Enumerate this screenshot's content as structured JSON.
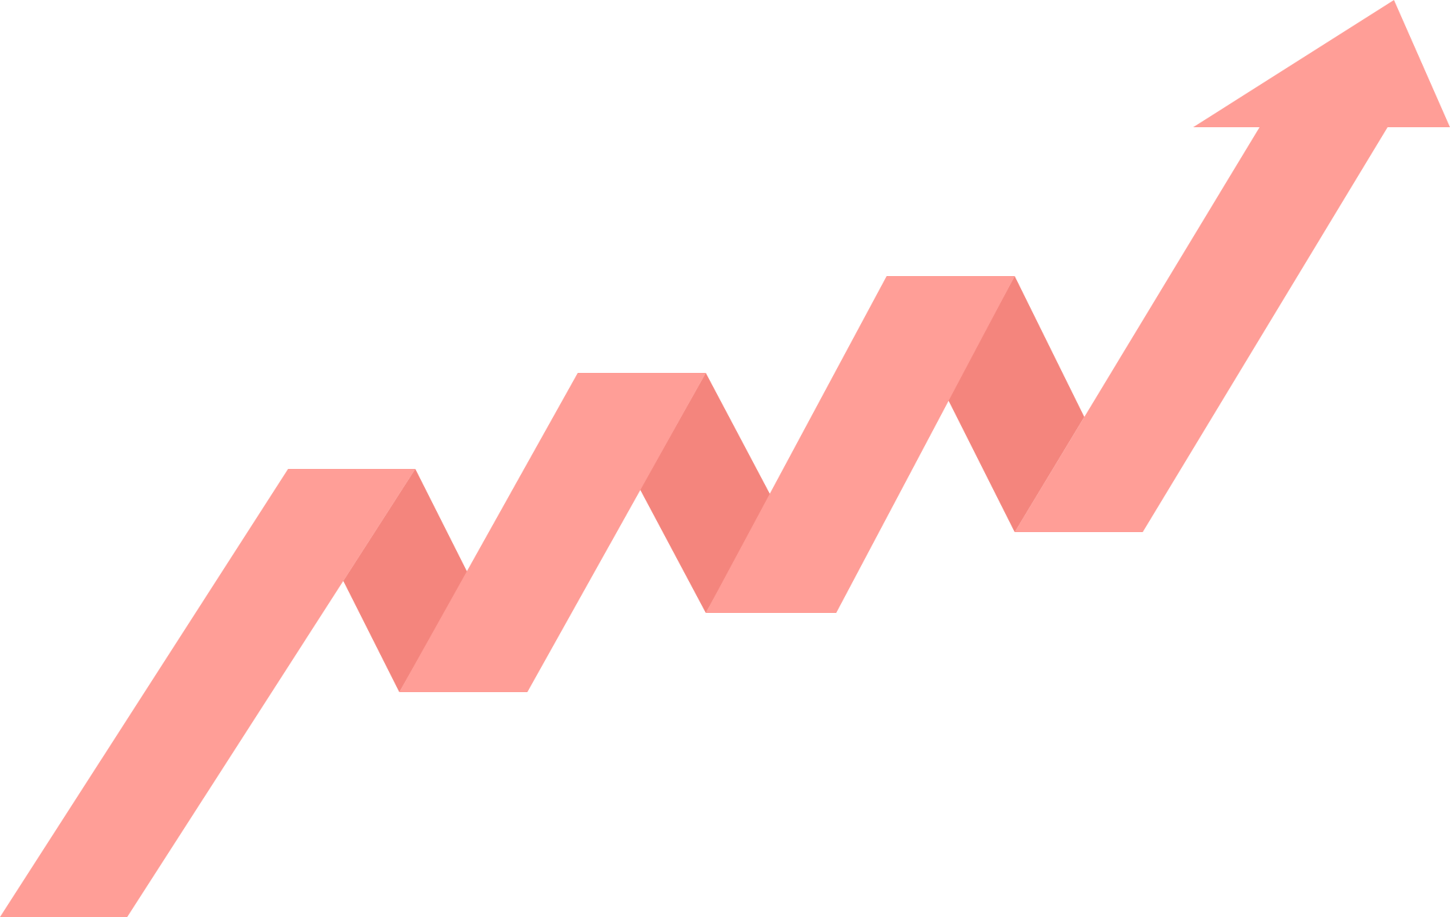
{
  "graphic": {
    "kind": "rising zigzag ribbon arrow",
    "direction": "up-right",
    "colors": {
      "ribbon_front": "#FF9E97",
      "ribbon_fold": "#F4857D",
      "background": "#FFFFFF"
    },
    "folds": 3
  }
}
